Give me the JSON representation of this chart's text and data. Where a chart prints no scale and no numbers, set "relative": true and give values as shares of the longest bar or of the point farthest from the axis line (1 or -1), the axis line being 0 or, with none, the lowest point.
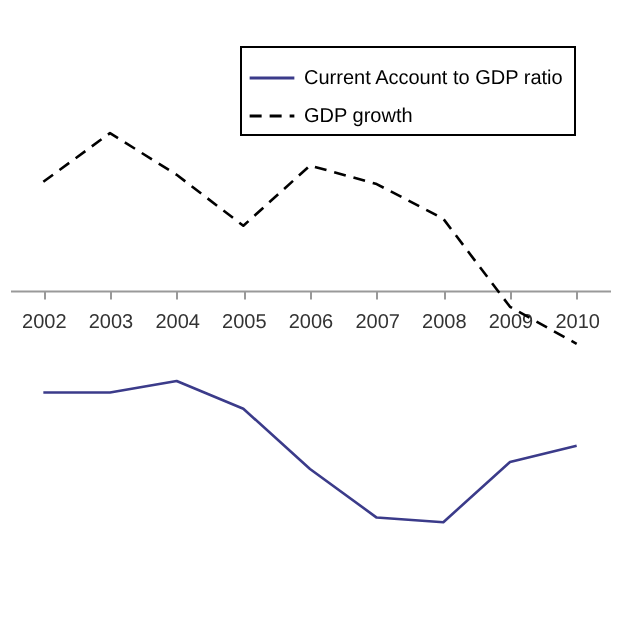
{
  "chart_data": {
    "type": "line",
    "relative": true,
    "categories": [
      "2002",
      "2003",
      "2004",
      "2005",
      "2006",
      "2007",
      "2008",
      "2009",
      "2010"
    ],
    "series": [
      {
        "name": "Current Account to GDP ratio",
        "color": "#3b3b8a",
        "line_style": "solid",
        "values": [
          -0.44,
          -0.44,
          -0.39,
          -0.51,
          -0.77,
          -0.98,
          -1,
          -0.74,
          -0.67
        ]
      },
      {
        "name": "GDP growth",
        "color": "#000000",
        "line_style": "dashed",
        "values": [
          0.47,
          0.68,
          0.5,
          0.28,
          0.54,
          0.46,
          0.31,
          -0.07,
          -0.23
        ]
      }
    ],
    "legend": "top right",
    "grid": false,
    "marker": "none"
  }
}
